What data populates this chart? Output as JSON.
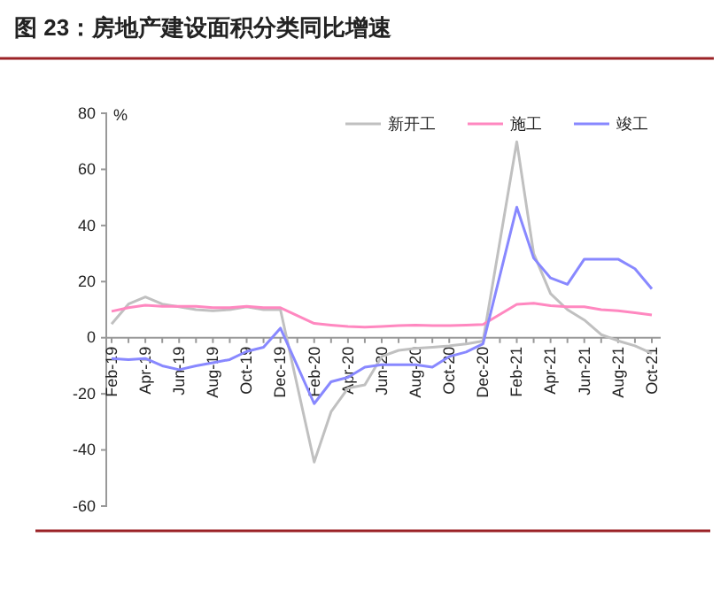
{
  "chart_data": {
    "type": "line",
    "title": "图 23：房地产建设面积分类同比增速",
    "ylabel": "%",
    "categories": [
      "Feb-19",
      null,
      "Apr-19",
      null,
      "Jun-19",
      null,
      "Aug-19",
      null,
      "Oct-19",
      null,
      "Dec-19",
      null,
      "Feb-20",
      null,
      "Apr-20",
      null,
      "Jun-20",
      null,
      "Aug-20",
      null,
      "Oct-20",
      null,
      "Dec-20",
      null,
      "Feb-21",
      null,
      "Apr-21",
      null,
      "Jun-21",
      null,
      "Aug-21",
      null,
      "Oct-21"
    ],
    "series": [
      {
        "name": "新开工",
        "color": "#c0c0c0",
        "values": [
          4.9,
          12,
          14.5,
          12,
          11,
          10,
          9.6,
          10,
          11,
          10,
          10,
          null,
          -44.3,
          -26.4,
          -18,
          -16.8,
          -6.7,
          -4.5,
          -3.8,
          -3.4,
          -2.9,
          -2.2,
          -1.2,
          null,
          69.8,
          30,
          15.7,
          10,
          6.3,
          1.1,
          -1.1,
          -2.9,
          -5.6
        ]
      },
      {
        "name": "施工",
        "color": "#ff88c0",
        "values": [
          9.4,
          10.7,
          11.6,
          11.2,
          11.2,
          11.2,
          10.7,
          10.7,
          11.2,
          10.7,
          10.7,
          null,
          5.1,
          4.5,
          4,
          3.8,
          4,
          4.3,
          4.5,
          4.3,
          4.3,
          4.5,
          4.7,
          null,
          11.9,
          12.3,
          11.4,
          11,
          11,
          10,
          9.6,
          8.9,
          8.1
        ]
      },
      {
        "name": "竣工",
        "color": "#8888ff",
        "values": [
          -7.4,
          -7.8,
          -7.4,
          -10,
          -11.4,
          -10,
          -8.9,
          -7.8,
          -4.9,
          -3.4,
          3.4,
          null,
          -23.5,
          -15.7,
          -14.1,
          -10.5,
          -9.6,
          -9.6,
          -9.6,
          -10.5,
          -6.7,
          -5.1,
          -2.2,
          null,
          46.5,
          28.4,
          21.3,
          19,
          28,
          28,
          28,
          24.6,
          17.4
        ]
      }
    ],
    "ylim": [
      -60,
      80
    ],
    "yticks": [
      -60,
      -40,
      -20,
      0,
      20,
      40,
      60,
      80
    ],
    "legend": "top right",
    "grid": false,
    "marker": "none",
    "line_style": "solid"
  }
}
